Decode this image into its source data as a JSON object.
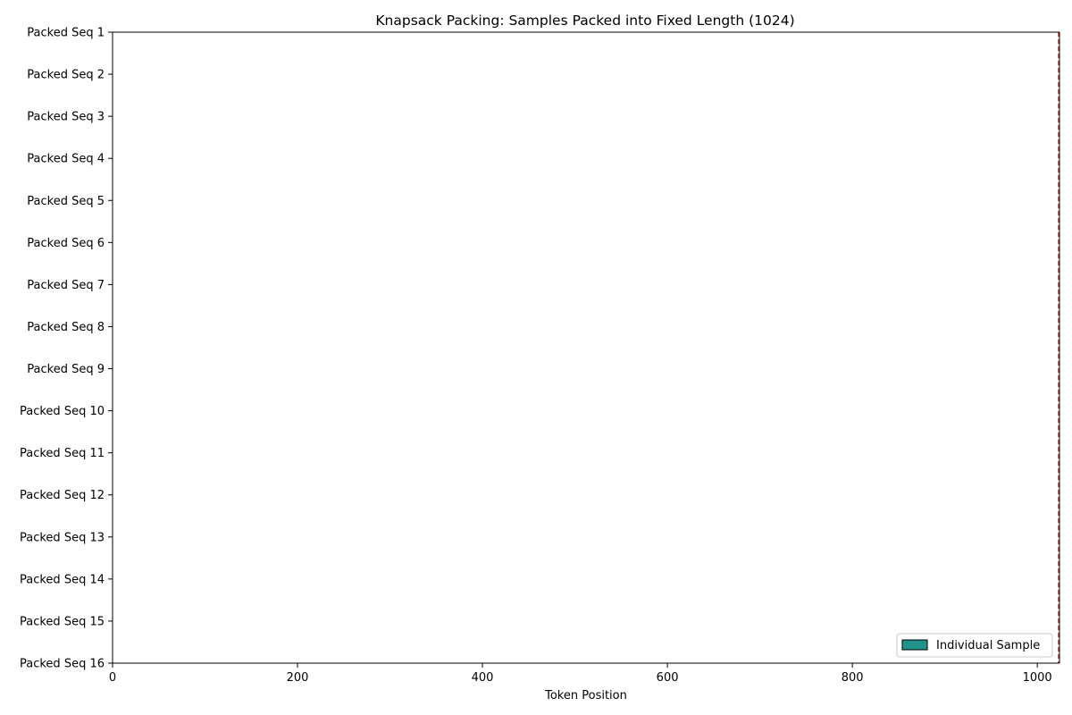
{
  "chart_data": {
    "type": "bar",
    "orientation": "horizontal",
    "title": "Knapsack Packing: Samples Packed into Fixed Length (1024)",
    "xlabel": "Token Position",
    "ylabel": "",
    "xlim": [
      0,
      1024
    ],
    "x_ticks": [
      0,
      200,
      400,
      600,
      800,
      1000
    ],
    "categories": [
      "Packed Seq 1",
      "Packed Seq 2",
      "Packed Seq 3",
      "Packed Seq 4",
      "Packed Seq 5",
      "Packed Seq 6",
      "Packed Seq 7",
      "Packed Seq 8",
      "Packed Seq 9",
      "Packed Seq 10",
      "Packed Seq 11",
      "Packed Seq 12",
      "Packed Seq 13",
      "Packed Seq 14",
      "Packed Seq 15",
      "Packed Seq 16"
    ],
    "series": [
      {
        "name": "Individual Sample",
        "color": "#21918c",
        "segments": []
      }
    ],
    "reference_line": {
      "x": 1024,
      "color": "#d62728",
      "style": "dashed"
    },
    "grid": false,
    "legend": {
      "position": "bottom-right",
      "entries": [
        "Individual Sample"
      ]
    }
  }
}
